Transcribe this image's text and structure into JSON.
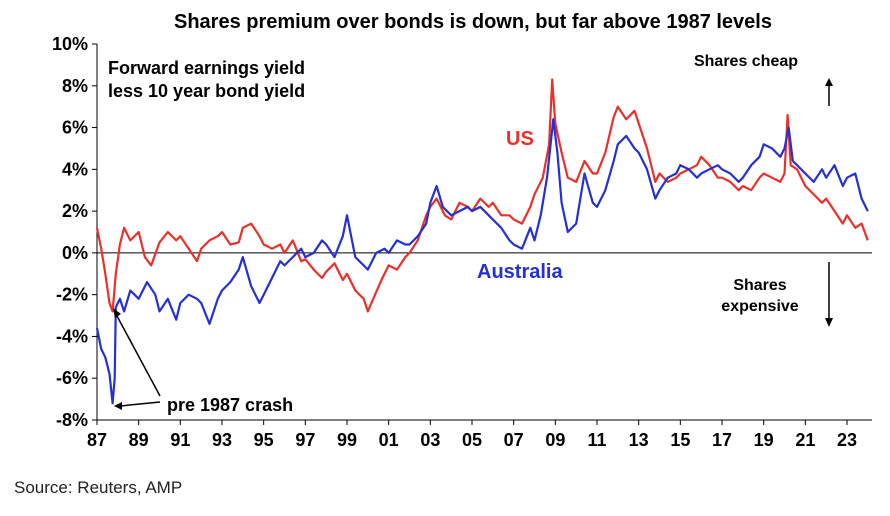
{
  "chart_data": {
    "type": "line",
    "title": "Shares premium over bonds is down, but far above 1987 levels",
    "subtitle_lines": [
      "Forward earnings yield",
      "less 10 year bond yield"
    ],
    "ylabel": "",
    "xlabel": "",
    "ylim": [
      -8,
      10
    ],
    "xlim": [
      1987,
      2024.2
    ],
    "y_ticks": [
      {
        "value": 10,
        "label": "10%"
      },
      {
        "value": 8,
        "label": "8%"
      },
      {
        "value": 6,
        "label": "6%"
      },
      {
        "value": 4,
        "label": "4%"
      },
      {
        "value": 2,
        "label": "2%"
      },
      {
        "value": 0,
        "label": "0%"
      },
      {
        "value": -2,
        "label": "-2%"
      },
      {
        "value": -4,
        "label": "-4%"
      },
      {
        "value": -6,
        "label": "-6%"
      },
      {
        "value": -8,
        "label": "-8%"
      }
    ],
    "x_ticks": [
      {
        "value": 1987,
        "label": "87"
      },
      {
        "value": 1989,
        "label": "89"
      },
      {
        "value": 1991,
        "label": "91"
      },
      {
        "value": 1993,
        "label": "93"
      },
      {
        "value": 1995,
        "label": "95"
      },
      {
        "value": 1997,
        "label": "97"
      },
      {
        "value": 1999,
        "label": "99"
      },
      {
        "value": 2001,
        "label": "01"
      },
      {
        "value": 2003,
        "label": "03"
      },
      {
        "value": 2005,
        "label": "05"
      },
      {
        "value": 2007,
        "label": "07"
      },
      {
        "value": 2009,
        "label": "09"
      },
      {
        "value": 2011,
        "label": "11"
      },
      {
        "value": 2013,
        "label": "13"
      },
      {
        "value": 2015,
        "label": "15"
      },
      {
        "value": 2017,
        "label": "17"
      },
      {
        "value": 2019,
        "label": "19"
      },
      {
        "value": 2021,
        "label": "21"
      },
      {
        "value": 2023,
        "label": "23"
      }
    ],
    "grid": false,
    "series": [
      {
        "name": "US",
        "color": "#e8312a",
        "points": [
          [
            1987.0,
            1.2
          ],
          [
            1987.2,
            0.2
          ],
          [
            1987.4,
            -1.0
          ],
          [
            1987.6,
            -2.4
          ],
          [
            1987.75,
            -2.8
          ],
          [
            1987.9,
            -1.0
          ],
          [
            1988.1,
            0.4
          ],
          [
            1988.3,
            1.2
          ],
          [
            1988.6,
            0.6
          ],
          [
            1989.0,
            1.0
          ],
          [
            1989.3,
            -0.2
          ],
          [
            1989.6,
            -0.6
          ],
          [
            1990.0,
            0.5
          ],
          [
            1990.4,
            1.0
          ],
          [
            1990.8,
            0.6
          ],
          [
            1991.0,
            0.8
          ],
          [
            1991.4,
            0.2
          ],
          [
            1991.8,
            -0.4
          ],
          [
            1992.0,
            0.2
          ],
          [
            1992.4,
            0.6
          ],
          [
            1992.8,
            0.8
          ],
          [
            1993.0,
            1.0
          ],
          [
            1993.4,
            0.4
          ],
          [
            1993.8,
            0.5
          ],
          [
            1994.0,
            1.2
          ],
          [
            1994.4,
            1.4
          ],
          [
            1994.8,
            0.8
          ],
          [
            1995.0,
            0.4
          ],
          [
            1995.4,
            0.2
          ],
          [
            1995.8,
            0.4
          ],
          [
            1996.0,
            0.0
          ],
          [
            1996.4,
            0.6
          ],
          [
            1996.8,
            -0.4
          ],
          [
            1997.0,
            -0.3
          ],
          [
            1997.4,
            -0.8
          ],
          [
            1997.8,
            -1.2
          ],
          [
            1998.0,
            -0.9
          ],
          [
            1998.4,
            -0.5
          ],
          [
            1998.8,
            -1.3
          ],
          [
            1999.0,
            -1.0
          ],
          [
            1999.4,
            -1.8
          ],
          [
            1999.8,
            -2.2
          ],
          [
            2000.0,
            -2.8
          ],
          [
            2000.3,
            -2.1
          ],
          [
            2000.7,
            -1.2
          ],
          [
            2001.0,
            -0.6
          ],
          [
            2001.4,
            -0.8
          ],
          [
            2001.8,
            -0.2
          ],
          [
            2002.0,
            0.0
          ],
          [
            2002.4,
            0.6
          ],
          [
            2002.8,
            1.8
          ],
          [
            2003.0,
            2.2
          ],
          [
            2003.3,
            2.6
          ],
          [
            2003.7,
            1.8
          ],
          [
            2004.0,
            1.6
          ],
          [
            2004.4,
            2.4
          ],
          [
            2004.8,
            2.2
          ],
          [
            2005.0,
            2.0
          ],
          [
            2005.4,
            2.6
          ],
          [
            2005.8,
            2.2
          ],
          [
            2006.0,
            2.4
          ],
          [
            2006.4,
            1.8
          ],
          [
            2006.8,
            1.8
          ],
          [
            2007.0,
            1.6
          ],
          [
            2007.4,
            1.4
          ],
          [
            2007.8,
            2.2
          ],
          [
            2008.0,
            2.8
          ],
          [
            2008.4,
            3.6
          ],
          [
            2008.7,
            5.2
          ],
          [
            2008.85,
            8.3
          ],
          [
            2009.0,
            6.2
          ],
          [
            2009.3,
            4.8
          ],
          [
            2009.6,
            3.6
          ],
          [
            2010.0,
            3.4
          ],
          [
            2010.4,
            4.4
          ],
          [
            2010.8,
            3.8
          ],
          [
            2011.0,
            3.8
          ],
          [
            2011.4,
            4.8
          ],
          [
            2011.8,
            6.5
          ],
          [
            2012.0,
            7.0
          ],
          [
            2012.4,
            6.4
          ],
          [
            2012.8,
            6.8
          ],
          [
            2013.0,
            6.2
          ],
          [
            2013.4,
            5.0
          ],
          [
            2013.8,
            3.4
          ],
          [
            2014.0,
            3.8
          ],
          [
            2014.4,
            3.4
          ],
          [
            2014.8,
            3.6
          ],
          [
            2015.0,
            3.8
          ],
          [
            2015.4,
            4.0
          ],
          [
            2015.8,
            4.2
          ],
          [
            2016.0,
            4.6
          ],
          [
            2016.4,
            4.2
          ],
          [
            2016.8,
            3.6
          ],
          [
            2017.0,
            3.6
          ],
          [
            2017.4,
            3.4
          ],
          [
            2017.8,
            3.0
          ],
          [
            2018.0,
            3.2
          ],
          [
            2018.4,
            3.0
          ],
          [
            2018.8,
            3.6
          ],
          [
            2019.0,
            3.8
          ],
          [
            2019.4,
            3.6
          ],
          [
            2019.8,
            3.4
          ],
          [
            2020.0,
            3.8
          ],
          [
            2020.15,
            6.6
          ],
          [
            2020.3,
            4.2
          ],
          [
            2020.6,
            4.0
          ],
          [
            2021.0,
            3.2
          ],
          [
            2021.4,
            2.8
          ],
          [
            2021.8,
            2.4
          ],
          [
            2022.0,
            2.6
          ],
          [
            2022.4,
            2.0
          ],
          [
            2022.8,
            1.4
          ],
          [
            2023.0,
            1.8
          ],
          [
            2023.4,
            1.2
          ],
          [
            2023.7,
            1.4
          ],
          [
            2024.0,
            0.6
          ]
        ]
      },
      {
        "name": "Australia",
        "color": "#2430d6",
        "points": [
          [
            1987.0,
            -3.6
          ],
          [
            1987.2,
            -4.6
          ],
          [
            1987.4,
            -5.0
          ],
          [
            1987.6,
            -5.8
          ],
          [
            1987.75,
            -7.2
          ],
          [
            1987.85,
            -6.0
          ],
          [
            1987.9,
            -2.6
          ],
          [
            1988.1,
            -2.2
          ],
          [
            1988.3,
            -2.8
          ],
          [
            1988.6,
            -1.8
          ],
          [
            1989.0,
            -2.2
          ],
          [
            1989.4,
            -1.4
          ],
          [
            1989.8,
            -2.0
          ],
          [
            1990.0,
            -2.8
          ],
          [
            1990.4,
            -2.2
          ],
          [
            1990.8,
            -3.2
          ],
          [
            1991.0,
            -2.4
          ],
          [
            1991.4,
            -2.0
          ],
          [
            1991.8,
            -2.2
          ],
          [
            1992.0,
            -2.4
          ],
          [
            1992.4,
            -3.4
          ],
          [
            1992.8,
            -2.2
          ],
          [
            1993.0,
            -1.8
          ],
          [
            1993.4,
            -1.4
          ],
          [
            1993.8,
            -0.8
          ],
          [
            1994.0,
            -0.2
          ],
          [
            1994.4,
            -1.6
          ],
          [
            1994.8,
            -2.4
          ],
          [
            1995.0,
            -2.0
          ],
          [
            1995.4,
            -1.2
          ],
          [
            1995.8,
            -0.4
          ],
          [
            1996.0,
            -0.6
          ],
          [
            1996.4,
            -0.2
          ],
          [
            1996.8,
            0.2
          ],
          [
            1997.0,
            -0.2
          ],
          [
            1997.4,
            0.0
          ],
          [
            1997.8,
            0.6
          ],
          [
            1998.0,
            0.4
          ],
          [
            1998.4,
            -0.2
          ],
          [
            1998.8,
            0.8
          ],
          [
            1999.0,
            1.8
          ],
          [
            1999.4,
            -0.2
          ],
          [
            1999.8,
            -0.6
          ],
          [
            2000.0,
            -0.8
          ],
          [
            2000.4,
            0.0
          ],
          [
            2000.8,
            0.2
          ],
          [
            2001.0,
            0.0
          ],
          [
            2001.4,
            0.6
          ],
          [
            2001.8,
            0.4
          ],
          [
            2002.0,
            0.4
          ],
          [
            2002.4,
            0.8
          ],
          [
            2002.8,
            1.4
          ],
          [
            2003.0,
            2.4
          ],
          [
            2003.3,
            3.2
          ],
          [
            2003.6,
            2.2
          ],
          [
            2004.0,
            1.8
          ],
          [
            2004.4,
            2.0
          ],
          [
            2004.8,
            2.2
          ],
          [
            2005.0,
            2.0
          ],
          [
            2005.4,
            2.2
          ],
          [
            2005.8,
            1.8
          ],
          [
            2006.0,
            1.6
          ],
          [
            2006.4,
            1.2
          ],
          [
            2006.8,
            0.6
          ],
          [
            2007.0,
            0.4
          ],
          [
            2007.4,
            0.2
          ],
          [
            2007.8,
            1.2
          ],
          [
            2008.0,
            0.6
          ],
          [
            2008.3,
            1.8
          ],
          [
            2008.6,
            3.6
          ],
          [
            2008.9,
            6.4
          ],
          [
            2009.1,
            4.8
          ],
          [
            2009.3,
            2.4
          ],
          [
            2009.6,
            1.0
          ],
          [
            2010.0,
            1.4
          ],
          [
            2010.4,
            3.8
          ],
          [
            2010.8,
            2.4
          ],
          [
            2011.0,
            2.2
          ],
          [
            2011.4,
            3.0
          ],
          [
            2011.8,
            4.4
          ],
          [
            2012.0,
            5.2
          ],
          [
            2012.4,
            5.6
          ],
          [
            2012.8,
            5.0
          ],
          [
            2013.0,
            4.8
          ],
          [
            2013.4,
            4.0
          ],
          [
            2013.8,
            2.6
          ],
          [
            2014.0,
            3.0
          ],
          [
            2014.4,
            3.6
          ],
          [
            2014.8,
            3.8
          ],
          [
            2015.0,
            4.2
          ],
          [
            2015.4,
            4.0
          ],
          [
            2015.8,
            3.6
          ],
          [
            2016.0,
            3.8
          ],
          [
            2016.4,
            4.0
          ],
          [
            2016.8,
            4.2
          ],
          [
            2017.0,
            4.0
          ],
          [
            2017.4,
            3.8
          ],
          [
            2017.8,
            3.4
          ],
          [
            2018.0,
            3.6
          ],
          [
            2018.4,
            4.2
          ],
          [
            2018.8,
            4.6
          ],
          [
            2019.0,
            5.2
          ],
          [
            2019.4,
            5.0
          ],
          [
            2019.8,
            4.6
          ],
          [
            2020.0,
            5.0
          ],
          [
            2020.2,
            6.0
          ],
          [
            2020.4,
            4.4
          ],
          [
            2020.8,
            4.0
          ],
          [
            2021.0,
            3.8
          ],
          [
            2021.4,
            3.4
          ],
          [
            2021.8,
            4.0
          ],
          [
            2022.0,
            3.6
          ],
          [
            2022.4,
            4.2
          ],
          [
            2022.8,
            3.2
          ],
          [
            2023.0,
            3.6
          ],
          [
            2023.4,
            3.8
          ],
          [
            2023.7,
            2.6
          ],
          [
            2024.0,
            2.0
          ]
        ]
      }
    ],
    "annotations": {
      "shares_cheap": "Shares cheap",
      "shares_expensive_line1": "Shares",
      "shares_expensive_line2": "expensive",
      "us_label": "US",
      "australia_label": "Australia",
      "crash_label": "pre 1987 crash"
    },
    "source": "Source: Reuters, AMP"
  }
}
